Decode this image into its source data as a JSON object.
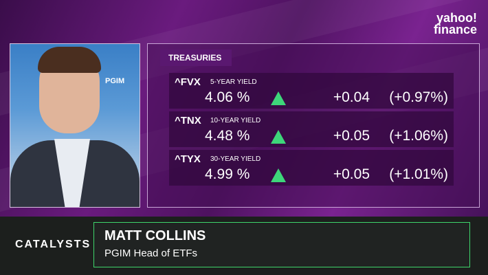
{
  "brand": {
    "line1": "yahoo!",
    "line2": "finance"
  },
  "video": {
    "logo_text": "PGIM"
  },
  "panel": {
    "title": "TREASURIES",
    "rows": [
      {
        "ticker": "^FVX",
        "label": "5-YEAR YIELD",
        "value": "4.06 %",
        "change": "+0.04",
        "percent": "(+0.97%)"
      },
      {
        "ticker": "^TNX",
        "label": "10-YEAR YIELD",
        "value": "4.48 %",
        "change": "+0.05",
        "percent": "(+1.06%)"
      },
      {
        "ticker": "^TYX",
        "label": "30-YEAR YIELD",
        "value": "4.99 %",
        "change": "+0.05",
        "percent": "(+1.01%)"
      }
    ]
  },
  "lower_third": {
    "show": "CATALYSTS",
    "name": "MATT COLLINS",
    "role": "PGIM Head of ETFs"
  }
}
